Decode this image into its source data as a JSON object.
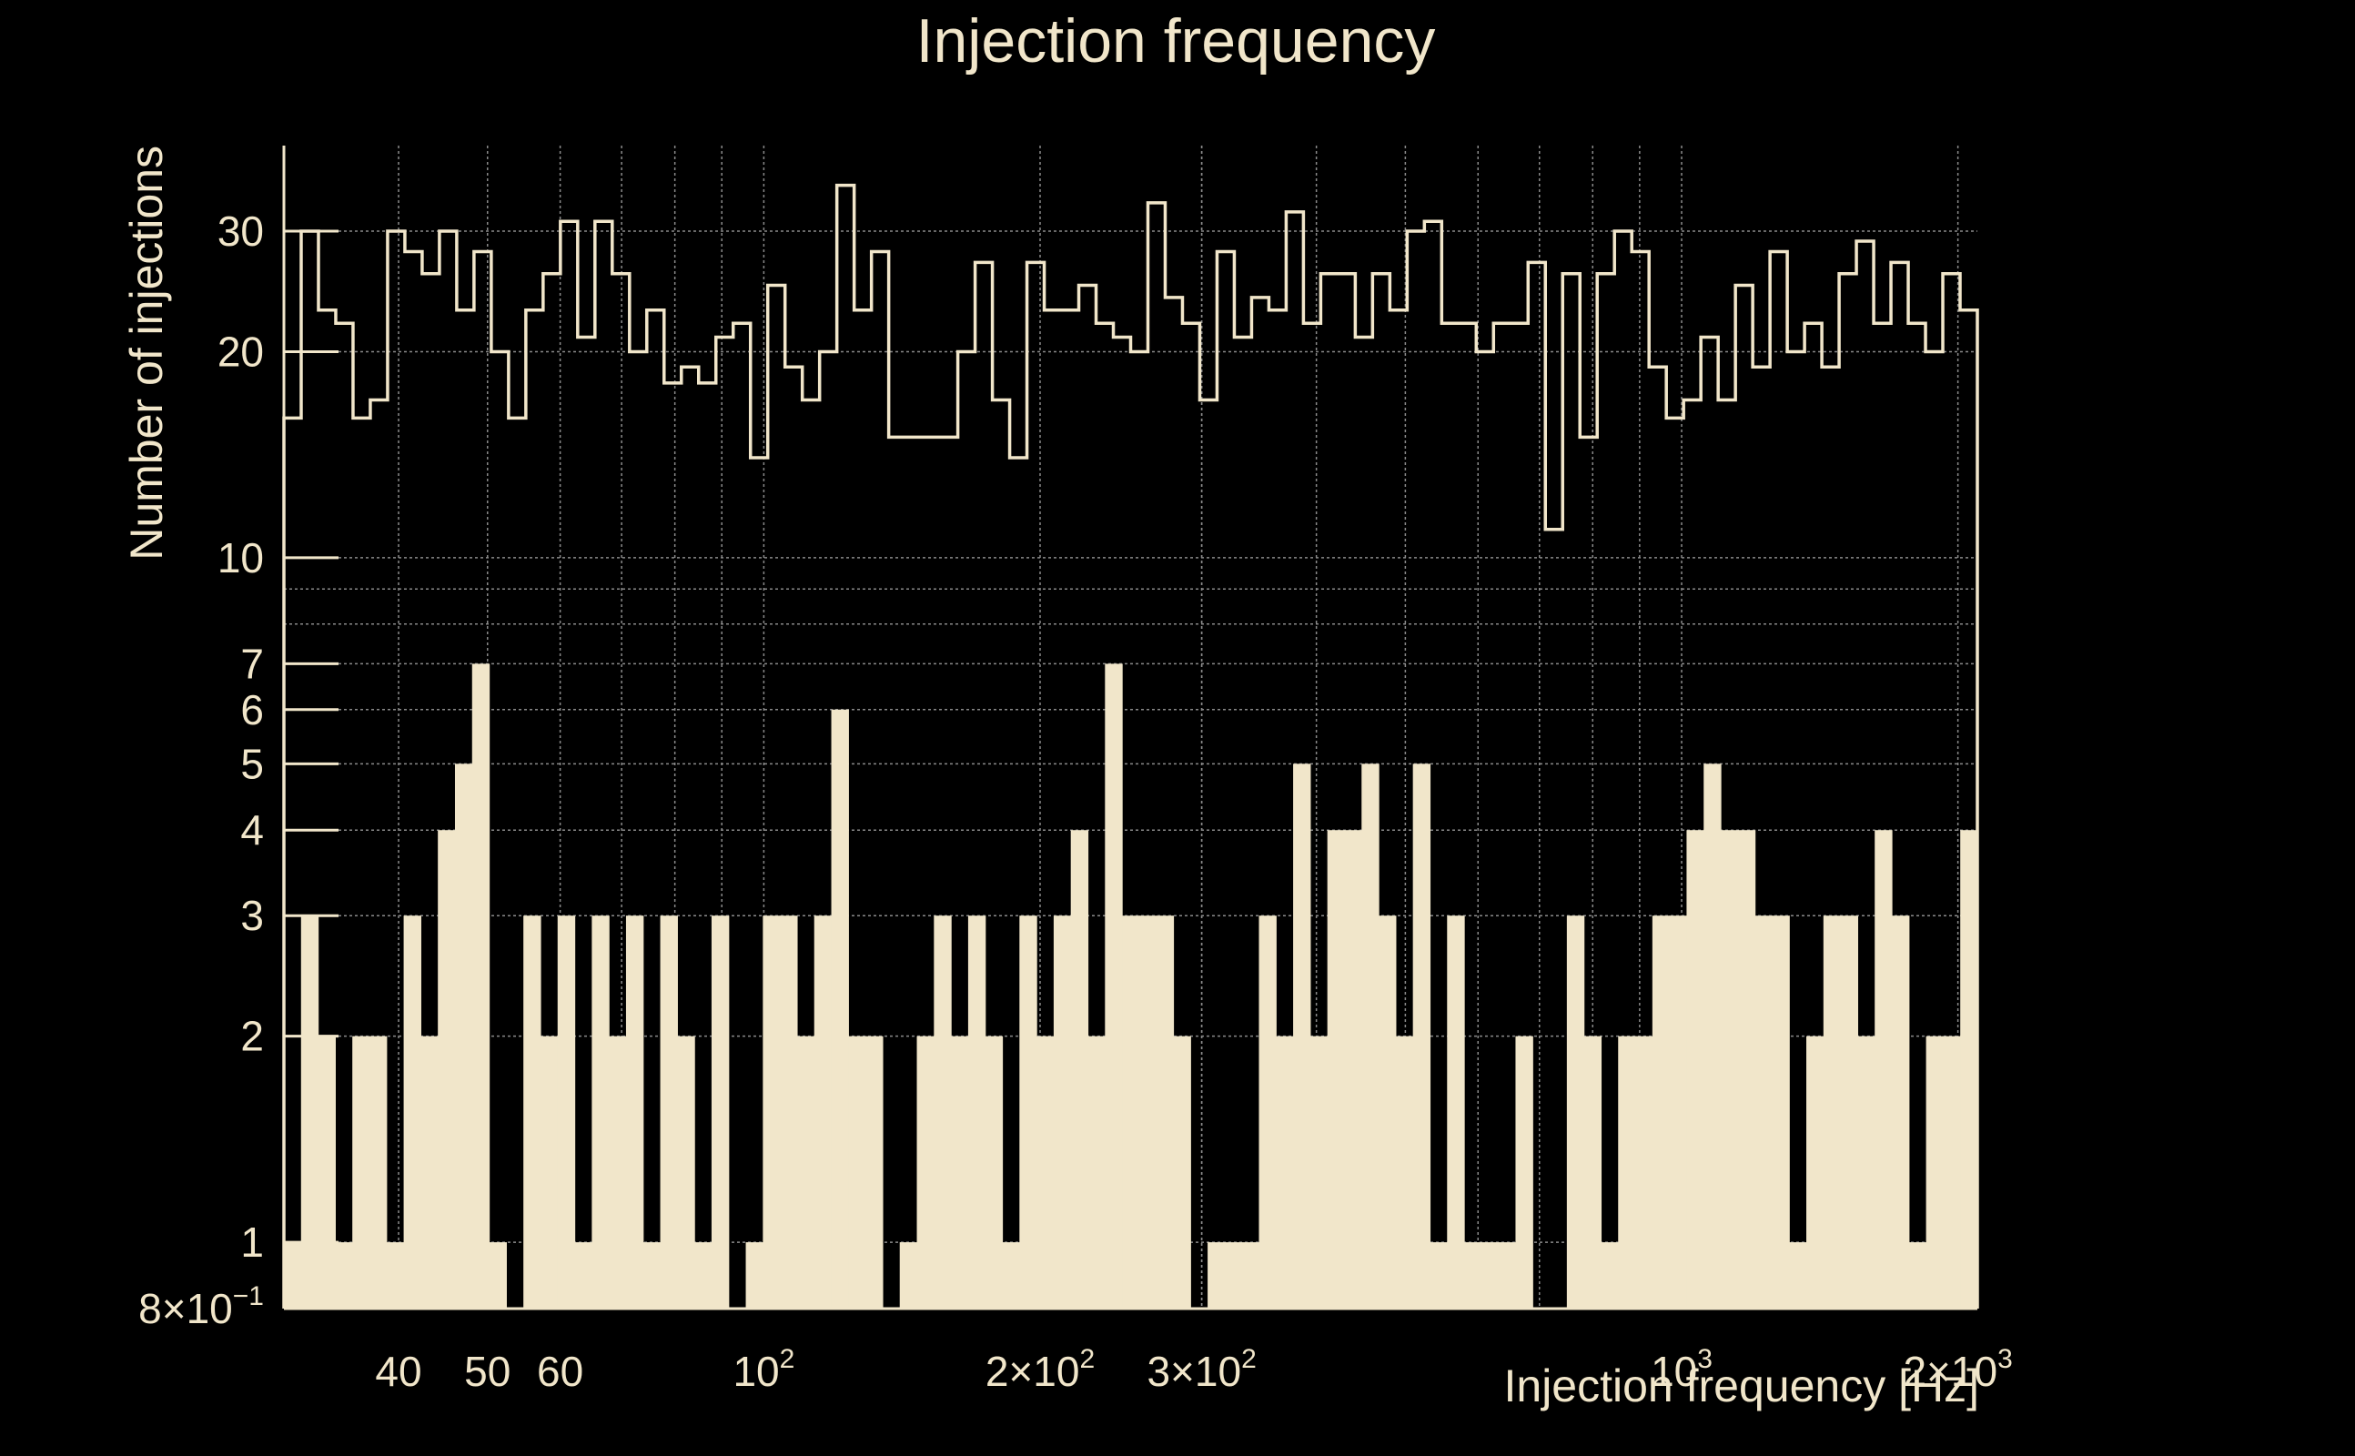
{
  "colors": {
    "background": "#000000",
    "foreground": "#f1e6ca",
    "grid": "#8a8a8a"
  },
  "chart_data": {
    "type": "bar",
    "title": "Injection frequency",
    "xlabel": "Injection frequency [Hz]",
    "ylabel": "Number of injections",
    "xscale": "log",
    "yscale": "log",
    "xlim": [
      30,
      2100
    ],
    "ylim": [
      0.8,
      40
    ],
    "grid": true,
    "x_ticks": [
      {
        "value": 40,
        "label": "40",
        "sup": ""
      },
      {
        "value": 50,
        "label": "50",
        "sup": ""
      },
      {
        "value": 60,
        "label": "60",
        "sup": ""
      },
      {
        "value": 100,
        "label": "10",
        "sup": "2"
      },
      {
        "value": 200,
        "label": "2×10",
        "sup": "2"
      },
      {
        "value": 300,
        "label": "3×10",
        "sup": "2"
      },
      {
        "value": 1000,
        "label": "10",
        "sup": "3"
      },
      {
        "value": 2000,
        "label": "2×10",
        "sup": "3"
      }
    ],
    "y_ticks": [
      {
        "value": 0.8,
        "label": "8×10",
        "sup": "−1"
      },
      {
        "value": 1,
        "label": "1",
        "sup": ""
      },
      {
        "value": 2,
        "label": "2",
        "sup": ""
      },
      {
        "value": 3,
        "label": "3",
        "sup": ""
      },
      {
        "value": 4,
        "label": "4",
        "sup": ""
      },
      {
        "value": 5,
        "label": "5",
        "sup": ""
      },
      {
        "value": 6,
        "label": "6",
        "sup": ""
      },
      {
        "value": 7,
        "label": "7",
        "sup": ""
      },
      {
        "value": 10,
        "label": "10",
        "sup": ""
      },
      {
        "value": 20,
        "label": "20",
        "sup": ""
      },
      {
        "value": 30,
        "label": "30",
        "sup": ""
      }
    ],
    "bin_range": [
      30,
      2100
    ],
    "series": [
      {
        "style": "step-outline",
        "values": [
          16,
          30,
          23,
          22,
          16,
          17,
          30,
          28,
          26,
          30,
          23,
          28,
          20,
          16,
          23,
          26,
          31,
          21,
          31,
          26,
          20,
          23,
          18,
          19,
          18,
          21,
          22,
          14,
          25,
          19,
          17,
          20,
          35,
          23,
          28,
          15,
          15,
          15,
          15,
          20,
          27,
          17,
          14,
          27,
          23,
          23,
          25,
          22,
          21,
          20,
          33,
          24,
          22,
          17,
          28,
          21,
          24,
          23,
          32,
          22,
          26,
          26,
          21,
          26,
          23,
          30,
          31,
          22,
          22,
          20,
          22,
          22,
          27,
          11,
          26,
          15,
          26,
          30,
          28,
          19,
          16,
          17,
          21,
          17,
          25,
          19,
          28,
          20,
          22,
          19,
          26,
          29,
          22,
          27,
          22,
          20,
          26,
          23
        ]
      },
      {
        "style": "filled",
        "values": [
          1,
          3,
          2,
          1,
          2,
          2,
          1,
          3,
          2,
          4,
          5,
          7,
          1,
          0.8,
          3,
          2,
          3,
          1,
          3,
          2,
          3,
          1,
          3,
          2,
          1,
          3,
          0.8,
          1,
          3,
          3,
          2,
          3,
          6,
          2,
          2,
          0.8,
          1,
          2,
          3,
          2,
          3,
          2,
          1,
          3,
          2,
          3,
          4,
          2,
          7,
          3,
          3,
          3,
          2,
          0.8,
          1,
          1,
          1,
          3,
          2,
          5,
          2,
          4,
          4,
          5,
          3,
          2,
          5,
          1,
          3,
          1,
          1,
          1,
          2,
          0.8,
          0.8,
          3,
          2,
          1,
          2,
          2,
          3,
          3,
          4,
          5,
          4,
          4,
          3,
          3,
          1,
          2,
          3,
          3,
          2,
          4,
          3,
          1,
          2,
          2,
          4
        ]
      }
    ]
  }
}
